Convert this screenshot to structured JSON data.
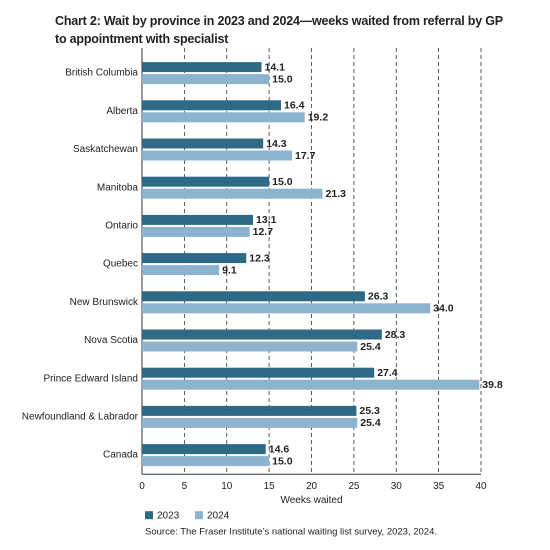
{
  "chart_data": {
    "type": "hbar",
    "title": "Chart 2: Wait by province in 2023 and 2024—weeks waited from referral by GP to appointment with specialist",
    "categories": [
      "British Columbia",
      "Alberta",
      "Saskatchewan",
      "Manitoba",
      "Ontario",
      "Quebec",
      "New Brunswick",
      "Nova Scotia",
      "Prince Edward Island",
      "Newfoundland & Labrador",
      "Canada"
    ],
    "series": [
      {
        "name": "2023",
        "color": "#2e6a85",
        "values": [
          14.1,
          16.4,
          14.3,
          15.0,
          13.1,
          12.3,
          26.3,
          28.3,
          27.4,
          25.3,
          14.6
        ],
        "value_labels": [
          "14.1",
          "16.4",
          "14.3",
          "15.0",
          "13.1",
          "12.3",
          "26.3",
          "28.3",
          "27.4",
          "25.3",
          "14.6"
        ]
      },
      {
        "name": "2024",
        "color": "#8db4cf",
        "values": [
          15.0,
          19.2,
          17.7,
          21.3,
          12.7,
          9.1,
          34.0,
          25.4,
          39.8,
          25.4,
          15.0
        ],
        "value_labels": [
          "15.0",
          "19.2",
          "17.7",
          "21.3",
          "12.7",
          "9.1",
          "34.0",
          "25.4",
          "39.8",
          "25.4",
          "15.0"
        ]
      }
    ],
    "xlabel": "Weeks waited",
    "xlim": [
      0,
      40
    ],
    "xticks": [
      0,
      5,
      10,
      15,
      20,
      25,
      30,
      35,
      40
    ],
    "grid": true,
    "source": "Source: The Fraser Institute’s national waiting list survey, 2023, 2024."
  }
}
